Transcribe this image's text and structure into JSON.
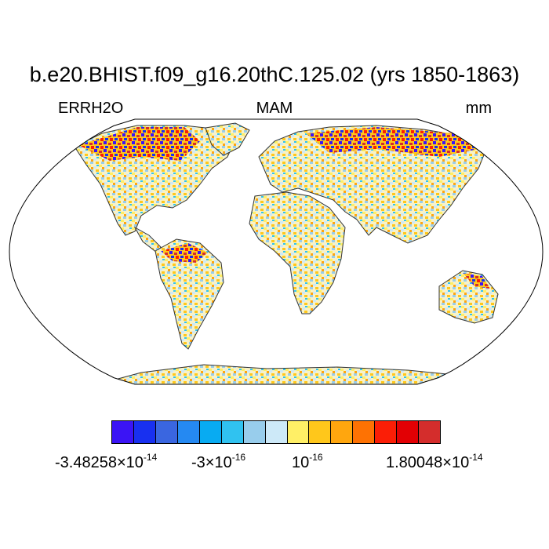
{
  "title": "b.e20.BHIST.f09_g16.20thC.125.02 (yrs 1850-1863)",
  "left_string": "ERRH2O",
  "center_string": "MAM",
  "right_string": "mm",
  "colorbar": {
    "colors": [
      "#3b14f5",
      "#1830f0",
      "#3a66e0",
      "#2589f2",
      "#08abf2",
      "#30c2f0",
      "#98cdec",
      "#cde9f8",
      "#ffef66",
      "#ffc71b",
      "#ffa60e",
      "#fe7203",
      "#fb1e06",
      "#e20004",
      "#d42d2c"
    ],
    "labels": [
      {
        "mantissa": "-3.48258",
        "times": "×10",
        "exp": "-14"
      },
      {
        "mantissa": "-3",
        "times": "×10",
        "exp": "-16"
      },
      {
        "mantissa": "",
        "times": "10",
        "exp": "-16"
      },
      {
        "mantissa": "1.80048",
        "times": "×10",
        "exp": "-14"
      }
    ]
  }
}
